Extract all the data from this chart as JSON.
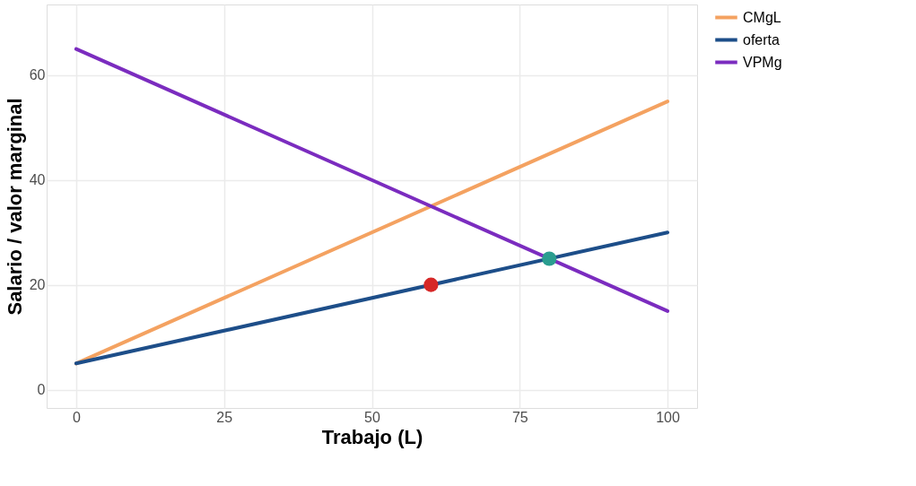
{
  "chart_data": {
    "type": "line",
    "xlabel": "Trabajo (L)",
    "ylabel": "Salario / valor marginal",
    "xlim": [
      -5,
      105
    ],
    "ylim": [
      -3.5,
      73.5
    ],
    "xticks": [
      0,
      25,
      50,
      75,
      100
    ],
    "yticks": [
      0,
      20,
      40,
      60
    ],
    "grid": true,
    "legend": "right",
    "series": [
      {
        "name": "CMgL",
        "color": "#f4a261",
        "x": [
          0,
          100
        ],
        "values": [
          5,
          55
        ]
      },
      {
        "name": "oferta",
        "color": "#1d4e89",
        "x": [
          0,
          100
        ],
        "values": [
          5,
          30
        ]
      },
      {
        "name": "VPMg",
        "color": "#7b2cbf",
        "x": [
          0,
          100
        ],
        "values": [
          65,
          15
        ]
      },
      {
        "type": "scatter",
        "color": "#d62828",
        "x": [
          60
        ],
        "values": [
          20
        ]
      },
      {
        "type": "scatter",
        "color": "#2a9d8f",
        "x": [
          80
        ],
        "values": [
          25
        ]
      }
    ]
  }
}
